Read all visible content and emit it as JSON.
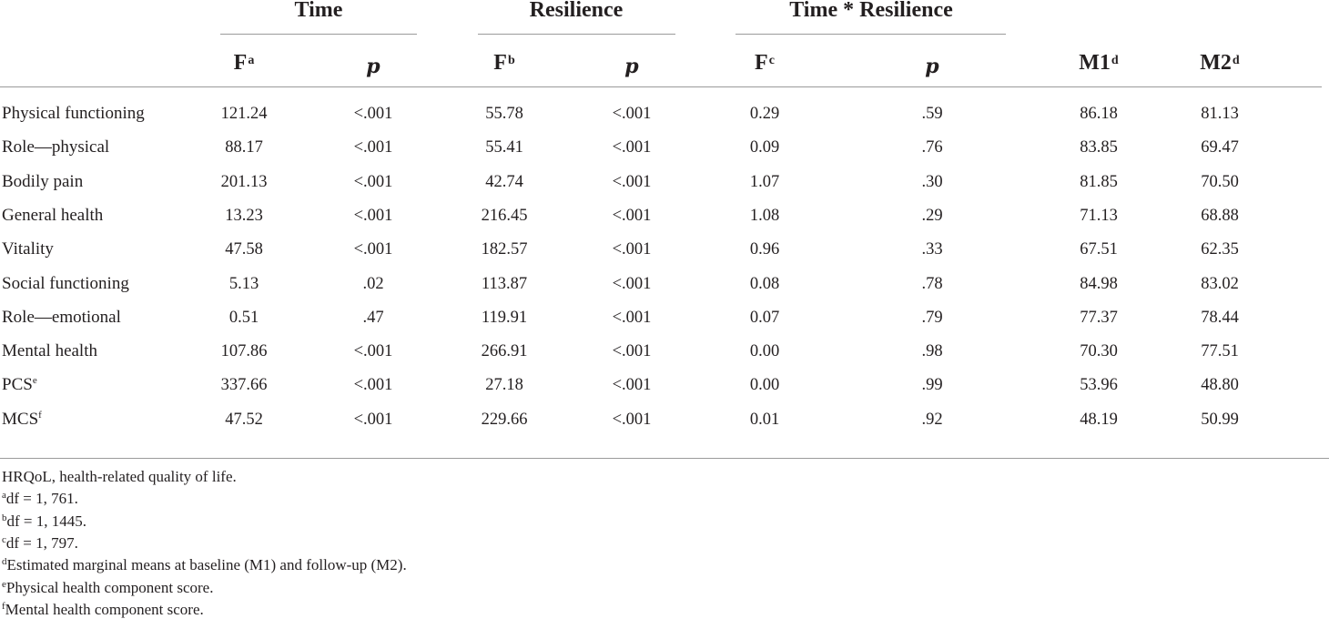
{
  "headers": {
    "group_time": "Time",
    "group_resilience": "Resilience",
    "group_interaction": "Time * Resilience",
    "col_f": "F",
    "col_p": "p",
    "col_m1": "M1",
    "col_m2": "M2",
    "sup_a": "a",
    "sup_b": "b",
    "sup_c": "c",
    "sup_d": "d"
  },
  "rows": [
    {
      "label": "Physical functioning",
      "sup": "",
      "values": [
        "121.24",
        "<.001",
        "55.78",
        "<.001",
        "0.29",
        ".59",
        "86.18",
        "81.13"
      ]
    },
    {
      "label": "Role—physical",
      "sup": "",
      "values": [
        "88.17",
        "<.001",
        "55.41",
        "<.001",
        "0.09",
        ".76",
        "83.85",
        "69.47"
      ]
    },
    {
      "label": "Bodily pain",
      "sup": "",
      "values": [
        "201.13",
        "<.001",
        "42.74",
        "<.001",
        "1.07",
        ".30",
        "81.85",
        "70.50"
      ]
    },
    {
      "label": "General health",
      "sup": "",
      "values": [
        "13.23",
        "<.001",
        "216.45",
        "<.001",
        "1.08",
        ".29",
        "71.13",
        "68.88"
      ]
    },
    {
      "label": "Vitality",
      "sup": "",
      "values": [
        "47.58",
        "<.001",
        "182.57",
        "<.001",
        "0.96",
        ".33",
        "67.51",
        "62.35"
      ]
    },
    {
      "label": "Social functioning",
      "sup": "",
      "values": [
        "5.13",
        ".02",
        "113.87",
        "<.001",
        "0.08",
        ".78",
        "84.98",
        "83.02"
      ]
    },
    {
      "label": "Role—emotional",
      "sup": "",
      "values": [
        "0.51",
        ".47",
        "119.91",
        "<.001",
        "0.07",
        ".79",
        "77.37",
        "78.44"
      ]
    },
    {
      "label": "Mental health",
      "sup": "",
      "values": [
        "107.86",
        "<.001",
        "266.91",
        "<.001",
        "0.00",
        ".98",
        "70.30",
        "77.51"
      ]
    },
    {
      "label": "PCS",
      "sup": "e",
      "values": [
        "337.66",
        "<.001",
        "27.18",
        "<.001",
        "0.00",
        ".99",
        "53.96",
        "48.80"
      ]
    },
    {
      "label": "MCS",
      "sup": "f",
      "values": [
        "47.52",
        "<.001",
        "229.66",
        "<.001",
        "0.01",
        ".92",
        "48.19",
        "50.99"
      ]
    }
  ],
  "notes": [
    {
      "sup": "",
      "text": "HRQoL, health-related quality of life."
    },
    {
      "sup": "a",
      "text": "df = 1, 761."
    },
    {
      "sup": "b",
      "text": "df = 1, 1445."
    },
    {
      "sup": "c",
      "text": "df = 1, 797."
    },
    {
      "sup": "d",
      "text": "Estimated marginal means at baseline (M1) and follow-up (M2)."
    },
    {
      "sup": "e",
      "text": "Physical health component score."
    },
    {
      "sup": "f",
      "text": "Mental health component score."
    }
  ]
}
